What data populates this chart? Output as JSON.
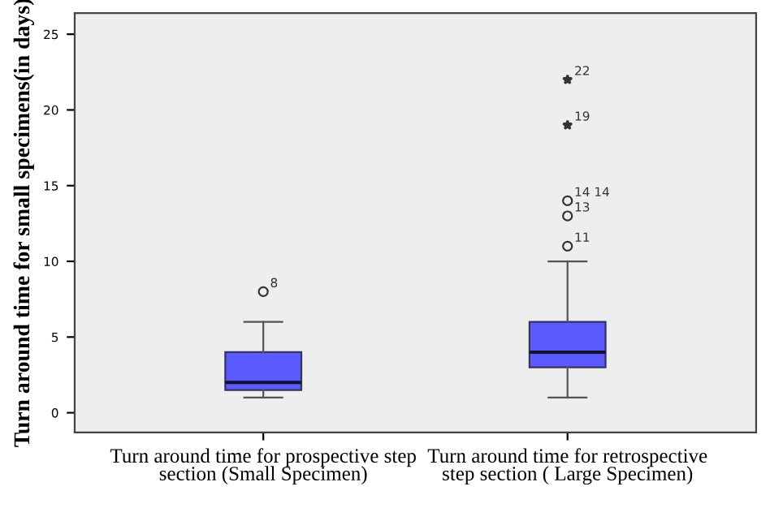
{
  "chart_data": {
    "type": "box",
    "ylabel": "Turn around time for small specimens(in days)",
    "categories": [
      "Turn around time for prospective step section (Small Specimen)",
      "Turn around time for retrospective step section ( Large Specimen)"
    ],
    "boxes": [
      {
        "low": 1,
        "q1": 1.5,
        "median": 2,
        "q3": 4,
        "high": 6,
        "outliers": [
          8
        ]
      },
      {
        "low": 1,
        "q1": 3,
        "median": 4,
        "q3": 6,
        "high": 10,
        "outliers": [
          11,
          13,
          14,
          19,
          22
        ]
      }
    ],
    "color": "#5a5aff",
    "ylim": [
      -1.3,
      26.4
    ],
    "yticks": [
      0,
      5,
      10,
      15,
      20,
      25
    ],
    "grid": false,
    "annotations": [
      "8",
      "11",
      "13",
      "14 14",
      "19",
      "22"
    ]
  }
}
